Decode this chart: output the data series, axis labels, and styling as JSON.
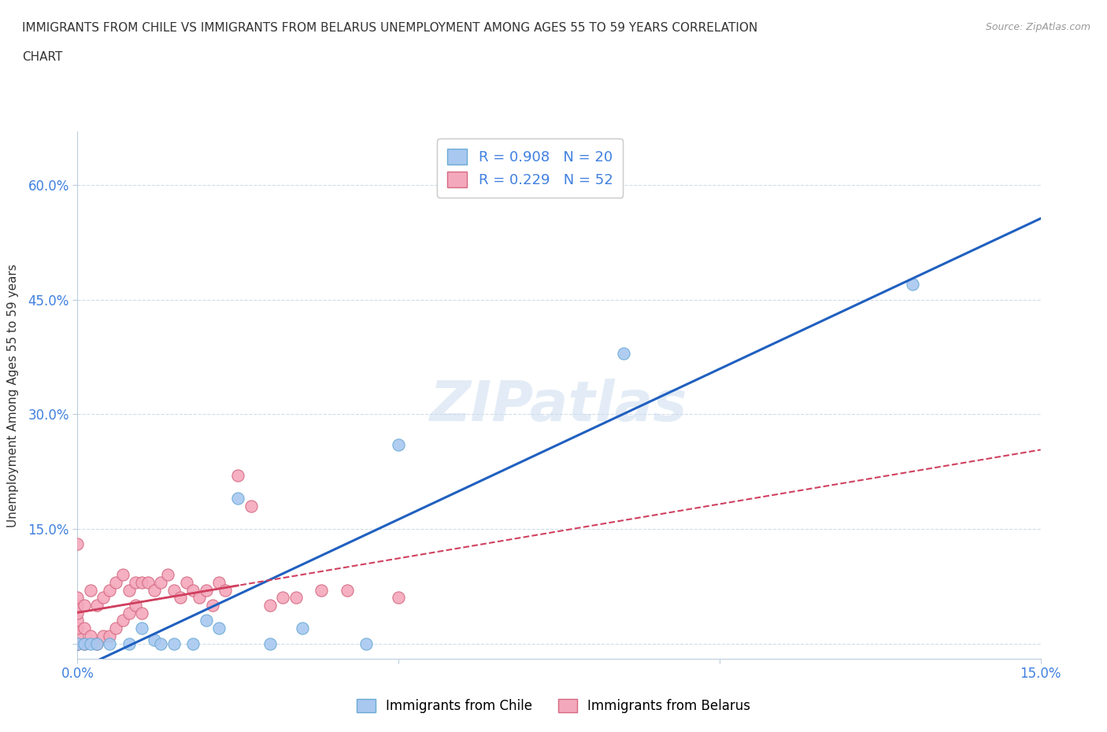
{
  "title_line1": "IMMIGRANTS FROM CHILE VS IMMIGRANTS FROM BELARUS UNEMPLOYMENT AMONG AGES 55 TO 59 YEARS CORRELATION",
  "title_line2": "CHART",
  "source_text": "Source: ZipAtlas.com",
  "ylabel": "Unemployment Among Ages 55 to 59 years",
  "xlim": [
    0.0,
    0.15
  ],
  "ylim": [
    -0.02,
    0.65
  ],
  "watermark": "ZIPatlas",
  "chile_color": "#a8c8f0",
  "chile_edge": "#6aaad4",
  "belarus_color": "#f4a8bc",
  "belarus_edge": "#d46880",
  "chile_R": 0.908,
  "chile_N": 20,
  "belarus_R": 0.229,
  "belarus_N": 52,
  "chile_line_color": "#2060c0",
  "belarus_line_color": "#d04060",
  "legend_R_color": "#4080e0",
  "chile_x": [
    0.0,
    0.001,
    0.002,
    0.003,
    0.005,
    0.008,
    0.01,
    0.012,
    0.013,
    0.015,
    0.018,
    0.02,
    0.022,
    0.025,
    0.03,
    0.035,
    0.045,
    0.05,
    0.085,
    0.13
  ],
  "chile_y": [
    0.0,
    0.0,
    0.0,
    0.0,
    0.0,
    0.0,
    0.02,
    0.005,
    0.0,
    0.0,
    0.0,
    0.03,
    0.02,
    0.19,
    0.0,
    0.02,
    0.0,
    0.26,
    0.38,
    0.47
  ],
  "belarus_x": [
    0.0,
    0.0,
    0.0,
    0.0,
    0.0,
    0.0,
    0.0,
    0.0,
    0.0,
    0.0,
    0.001,
    0.001,
    0.001,
    0.002,
    0.002,
    0.003,
    0.003,
    0.004,
    0.004,
    0.005,
    0.005,
    0.006,
    0.006,
    0.007,
    0.007,
    0.008,
    0.008,
    0.009,
    0.009,
    0.01,
    0.01,
    0.011,
    0.012,
    0.013,
    0.014,
    0.015,
    0.016,
    0.017,
    0.018,
    0.019,
    0.02,
    0.021,
    0.022,
    0.023,
    0.025,
    0.027,
    0.03,
    0.032,
    0.034,
    0.038,
    0.042,
    0.05
  ],
  "belarus_y": [
    0.0,
    0.0,
    0.0,
    0.01,
    0.02,
    0.03,
    0.04,
    0.05,
    0.06,
    0.13,
    0.0,
    0.02,
    0.05,
    0.01,
    0.07,
    0.0,
    0.05,
    0.01,
    0.06,
    0.01,
    0.07,
    0.02,
    0.08,
    0.03,
    0.09,
    0.04,
    0.07,
    0.05,
    0.08,
    0.04,
    0.08,
    0.08,
    0.07,
    0.08,
    0.09,
    0.07,
    0.06,
    0.08,
    0.07,
    0.06,
    0.07,
    0.05,
    0.08,
    0.07,
    0.22,
    0.18,
    0.05,
    0.06,
    0.06,
    0.07,
    0.07,
    0.06
  ],
  "background_color": "#ffffff",
  "grid_color": "#d0dce8",
  "tick_label_color": "#4080e0",
  "yticks": [
    0.0,
    0.15,
    0.3,
    0.45,
    0.6
  ],
  "yticklabels": [
    "",
    "15.0%",
    "30.0%",
    "45.0%",
    "60.0%"
  ],
  "xticks": [
    0.0,
    0.05,
    0.1,
    0.15
  ],
  "xticklabels": [
    "0.0%",
    "",
    "",
    "15.0%"
  ]
}
